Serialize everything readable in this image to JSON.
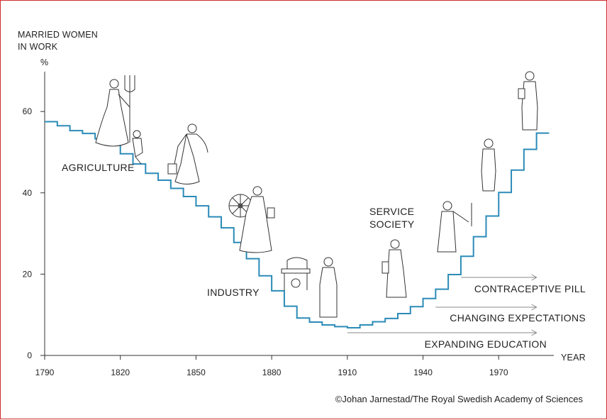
{
  "chart_data": {
    "type": "line",
    "step": true,
    "ylabel_lines": [
      "MARRIED WOMEN",
      "IN WORK"
    ],
    "yunit": "%",
    "xlabel": "YEAR",
    "xlim": [
      1790,
      1990
    ],
    "ylim": [
      0,
      70
    ],
    "xticks": [
      1790,
      1820,
      1850,
      1880,
      1910,
      1940,
      1970
    ],
    "yticks": [
      0,
      20,
      40,
      60
    ],
    "grid": false,
    "line_color": "#2b8bb8",
    "series": [
      {
        "x": [
          1790,
          1795,
          1800,
          1805,
          1810,
          1815,
          1820,
          1825,
          1830,
          1835,
          1840,
          1845,
          1850,
          1855,
          1860,
          1865,
          1870,
          1875,
          1880,
          1885,
          1890,
          1895,
          1900,
          1905,
          1910,
          1915,
          1920,
          1925,
          1930,
          1935,
          1940,
          1945,
          1950,
          1955,
          1960,
          1965,
          1970,
          1975,
          1980,
          1985,
          1990
        ],
        "y": [
          57.5,
          56.5,
          55.3,
          54.6,
          53.3,
          51.7,
          49.6,
          47.1,
          44.8,
          43.1,
          41.1,
          39.1,
          36.8,
          34.1,
          31.4,
          27.8,
          23.8,
          19.6,
          15.9,
          12.1,
          9.2,
          8.2,
          7.5,
          7.1,
          6.8,
          7.5,
          8.3,
          9.1,
          10.3,
          12.0,
          14.0,
          16.3,
          19.9,
          24.4,
          29.2,
          34.3,
          40.1,
          45.6,
          50.7,
          54.7,
          54.7
        ]
      }
    ],
    "annotations": [
      "AGRICULTURE",
      "INDUSTRY",
      "SERVICE SOCIETY"
    ],
    "drivers": [
      {
        "label": "CONTRACEPTIVE PILL",
        "from_year": 1955,
        "to_year": 1985
      },
      {
        "label": "CHANGING EXPECTATIONS",
        "from_year": 1945,
        "to_year": 1985
      },
      {
        "label": "EXPANDING EDUCATION",
        "from_year": 1910,
        "to_year": 1985
      }
    ]
  },
  "era_labels": {
    "agriculture": "AGRICULTURE",
    "industry": "INDUSTRY",
    "service_line1": "SERVICE",
    "service_line2": "SOCIETY"
  },
  "credit": "©Johan Jarnestad/The Royal Swedish Academy of Sciences",
  "illustrations": [
    "farm-woman-icon",
    "child-icon",
    "worker-woman-icon",
    "spinning-wheel-icon",
    "spinner-woman-icon",
    "sewing-machine-icon",
    "factory-woman-icon",
    "office-woman-icon",
    "lab-woman-icon",
    "businesswoman-icon",
    "professional-woman-icon"
  ]
}
